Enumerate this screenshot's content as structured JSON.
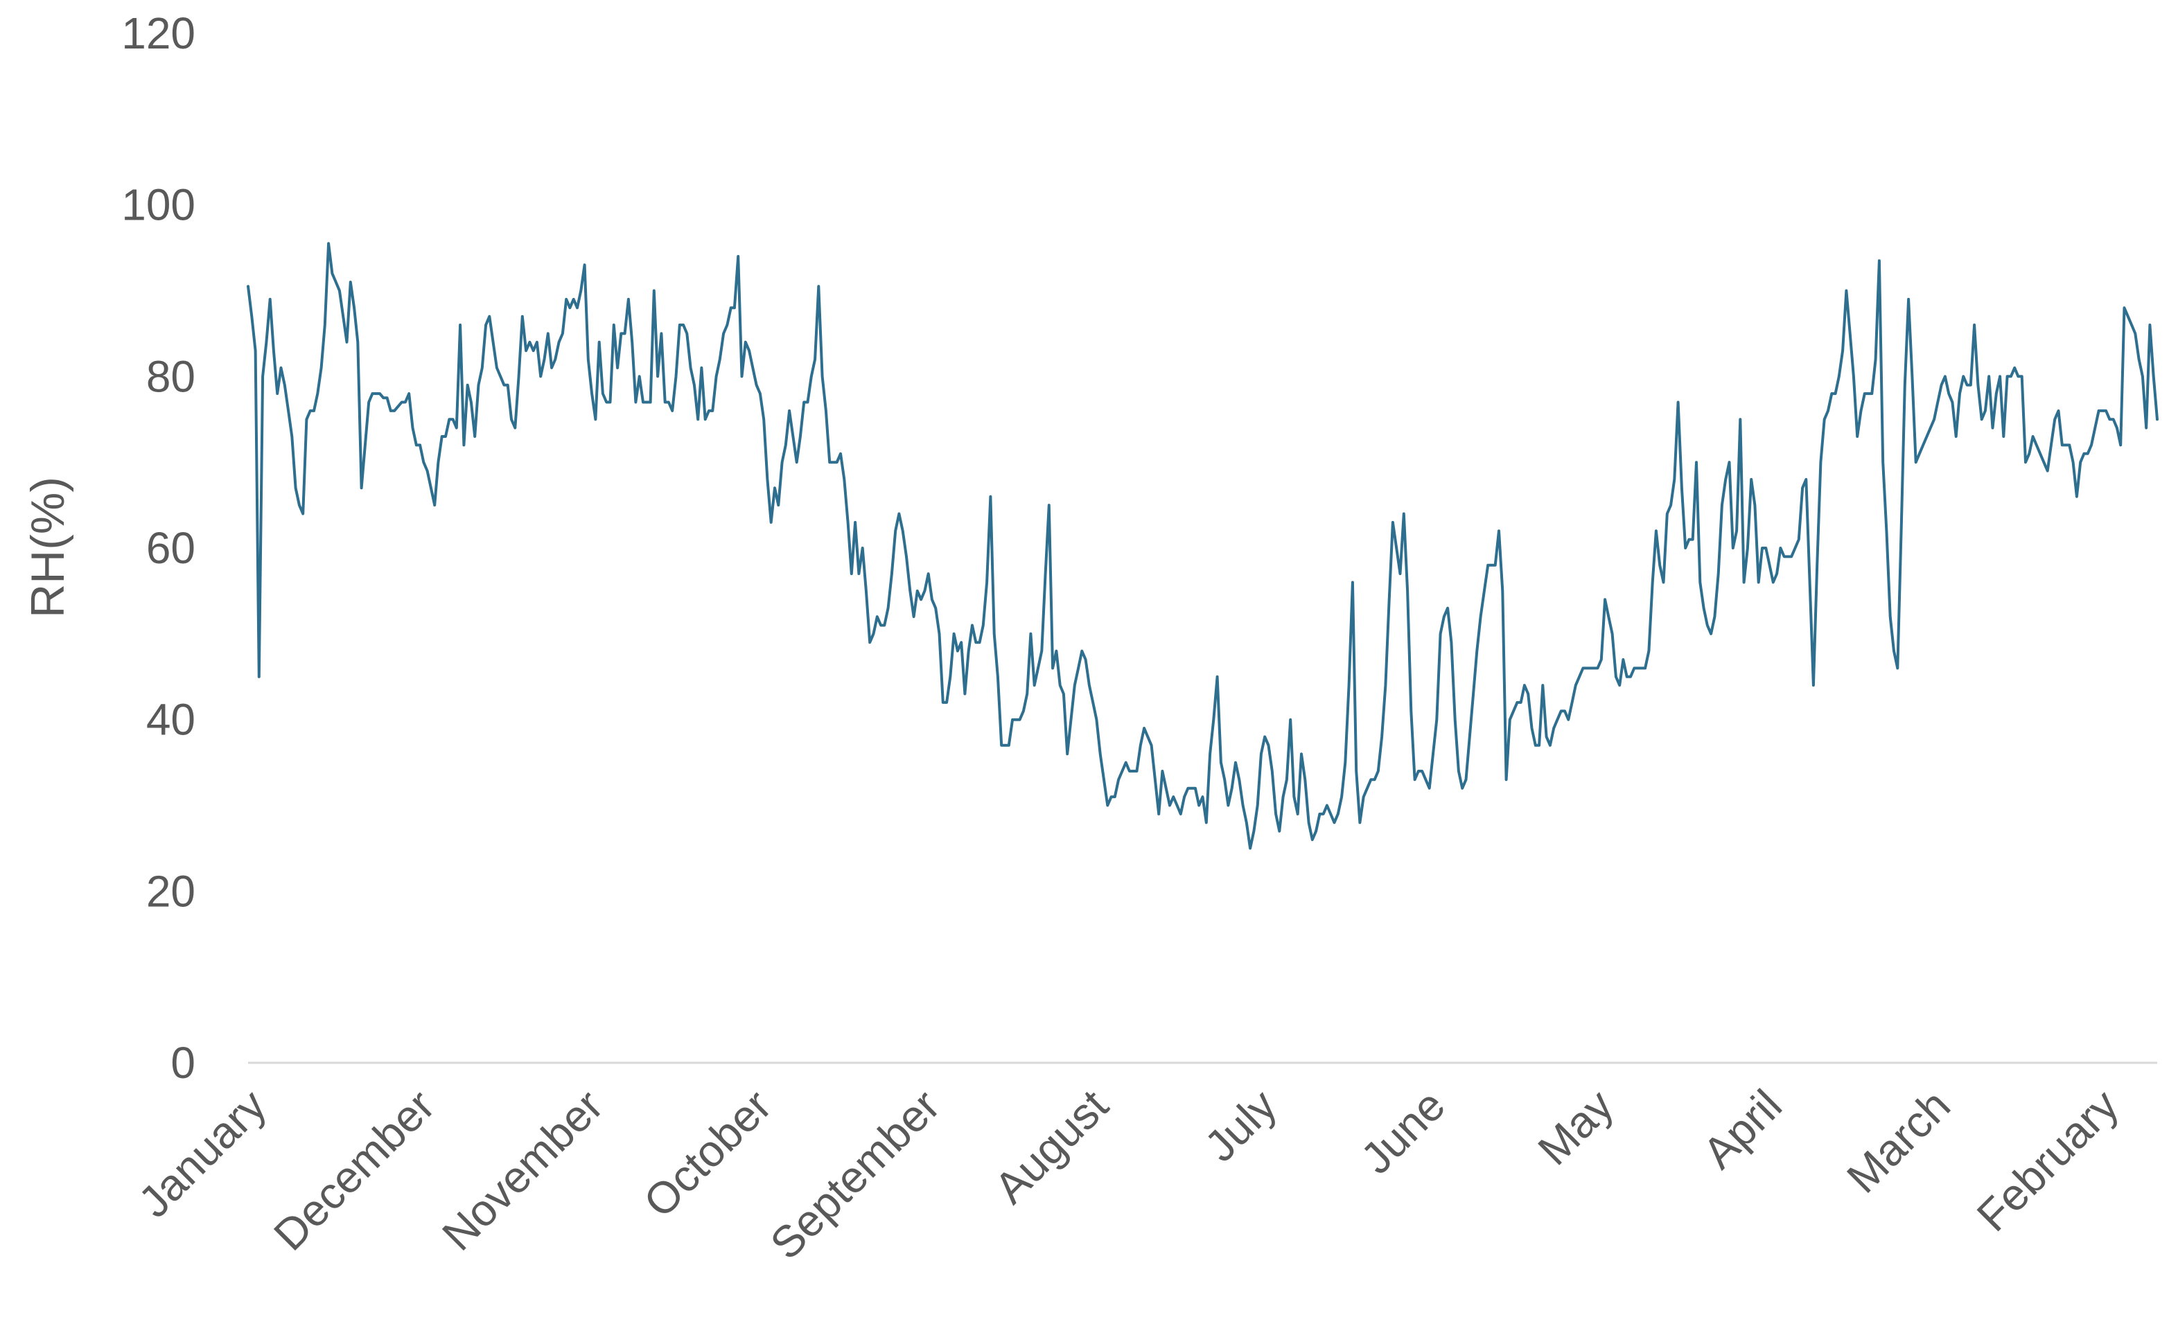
{
  "chart_data": {
    "type": "line",
    "title": "",
    "xlabel": "",
    "ylabel": "RH(%)",
    "ylim": [
      0,
      120
    ],
    "yticks": [
      0,
      20,
      40,
      60,
      80,
      100,
      120
    ],
    "grid": false,
    "legend": "none",
    "line_color": "#2e6e8e",
    "axis_color": "#d9d9d9",
    "x_order": "reverse-chronological (January back to February)",
    "x_month_labels": [
      "January",
      "December",
      "November",
      "October",
      "September",
      "August",
      "July",
      "June",
      "May",
      "April",
      "March",
      "February"
    ],
    "series": [
      {
        "name": "",
        "values": [
          90.5,
          87,
          83,
          45,
          80,
          84,
          89,
          83,
          78,
          81,
          79,
          76,
          73,
          67,
          65,
          64,
          75,
          76,
          76,
          78,
          81,
          86,
          95.5,
          92,
          91,
          90,
          87,
          84,
          91,
          88,
          84,
          67,
          72,
          77,
          78,
          78,
          78,
          77.5,
          77.5,
          76,
          76,
          76.5,
          77,
          77,
          78,
          74,
          72,
          72,
          70,
          69,
          67,
          65,
          70,
          73,
          73,
          75,
          75,
          74,
          86,
          72,
          79,
          77,
          73,
          79,
          81,
          86,
          87,
          84,
          81,
          80,
          79,
          79,
          75,
          74,
          80,
          87,
          83,
          84,
          83,
          84,
          80,
          82,
          85,
          81,
          82,
          84,
          85,
          89,
          88,
          89,
          88,
          90,
          93,
          82,
          78,
          75,
          84,
          78,
          77,
          77,
          86,
          81,
          85,
          85,
          89,
          84,
          77,
          80,
          77,
          77,
          77,
          90,
          80,
          85,
          77,
          77,
          76,
          80,
          86,
          86,
          85,
          81,
          79,
          75,
          81,
          75,
          76,
          76,
          80,
          82,
          85,
          86,
          88,
          88,
          94,
          80,
          84,
          83,
          81,
          79,
          78,
          75,
          68,
          63,
          67,
          65,
          70,
          72,
          76,
          73,
          70,
          73,
          77,
          77,
          80,
          82,
          90.5,
          80,
          76,
          70,
          70,
          70,
          71,
          68,
          63,
          57,
          63,
          57,
          60,
          55,
          49,
          50,
          52,
          51,
          51,
          53,
          57,
          62,
          64,
          62,
          59,
          55,
          52,
          55,
          54,
          55,
          57,
          54,
          53,
          50,
          42,
          42,
          45,
          50,
          48,
          49,
          43,
          48,
          51,
          49,
          49,
          51,
          56,
          66,
          50,
          45,
          37,
          37,
          37,
          40,
          40,
          40,
          41,
          43,
          50,
          44,
          46,
          48,
          57,
          65,
          46,
          48,
          44,
          43,
          36,
          40,
          44,
          46,
          48,
          47,
          44,
          42,
          40,
          36,
          33,
          30,
          31,
          31,
          33,
          34,
          35,
          34,
          34,
          34,
          37,
          39,
          38,
          37,
          33,
          29,
          34,
          32,
          30,
          31,
          30,
          29,
          31,
          32,
          32,
          32,
          30,
          31,
          28,
          36,
          40,
          45,
          35,
          33,
          30,
          32,
          35,
          33,
          30,
          28,
          25,
          27,
          30,
          36,
          38,
          37,
          34,
          29,
          27,
          31,
          33,
          40,
          31,
          29,
          36,
          33,
          28,
          26,
          27,
          29,
          29,
          30,
          29,
          28,
          29,
          31,
          35,
          44,
          56,
          34,
          28,
          31,
          32,
          33,
          33,
          34,
          38,
          44,
          54,
          63,
          60,
          57,
          64,
          55,
          41,
          33,
          34,
          34,
          33,
          32,
          36,
          40,
          50,
          52,
          53,
          49,
          40,
          34,
          32,
          33,
          38,
          43,
          48,
          52,
          55,
          58,
          58,
          58,
          62,
          55,
          33,
          40,
          41,
          42,
          42,
          44,
          43,
          39,
          37,
          37,
          44,
          38,
          37,
          39,
          40,
          41,
          41,
          40,
          42,
          44,
          45,
          46,
          46,
          46,
          46,
          46,
          47,
          54,
          52,
          50,
          45,
          44,
          47,
          45,
          45,
          46,
          46,
          46,
          46,
          48,
          56,
          62,
          58,
          56,
          64,
          65,
          68,
          77,
          67,
          60,
          61,
          61,
          70,
          56,
          53,
          51,
          50,
          52,
          57,
          65,
          68,
          70,
          60,
          62,
          75,
          56,
          60,
          68,
          65,
          56,
          60,
          60,
          58,
          56,
          57,
          60,
          59,
          59,
          59,
          60,
          61,
          67,
          68,
          56,
          44,
          58,
          70,
          75,
          76,
          78,
          78,
          80,
          83,
          90,
          85,
          80,
          73,
          76,
          78,
          78,
          78,
          82,
          93.5,
          70,
          62,
          52,
          48,
          46,
          62,
          79,
          89,
          80,
          70,
          71,
          72,
          73,
          74,
          75,
          77,
          79,
          80,
          78,
          77,
          73,
          78,
          80,
          79,
          79,
          86,
          79,
          75,
          76,
          80,
          74,
          78,
          80,
          73,
          80,
          80,
          81,
          80,
          80,
          70,
          71,
          73,
          72,
          71,
          70,
          69,
          72,
          75,
          76,
          72,
          72,
          72,
          70,
          66,
          70,
          71,
          71,
          72,
          74,
          76,
          76,
          76,
          75,
          75,
          74,
          72,
          88,
          87,
          86,
          85,
          82,
          80,
          74,
          86,
          80,
          75
        ]
      }
    ]
  }
}
